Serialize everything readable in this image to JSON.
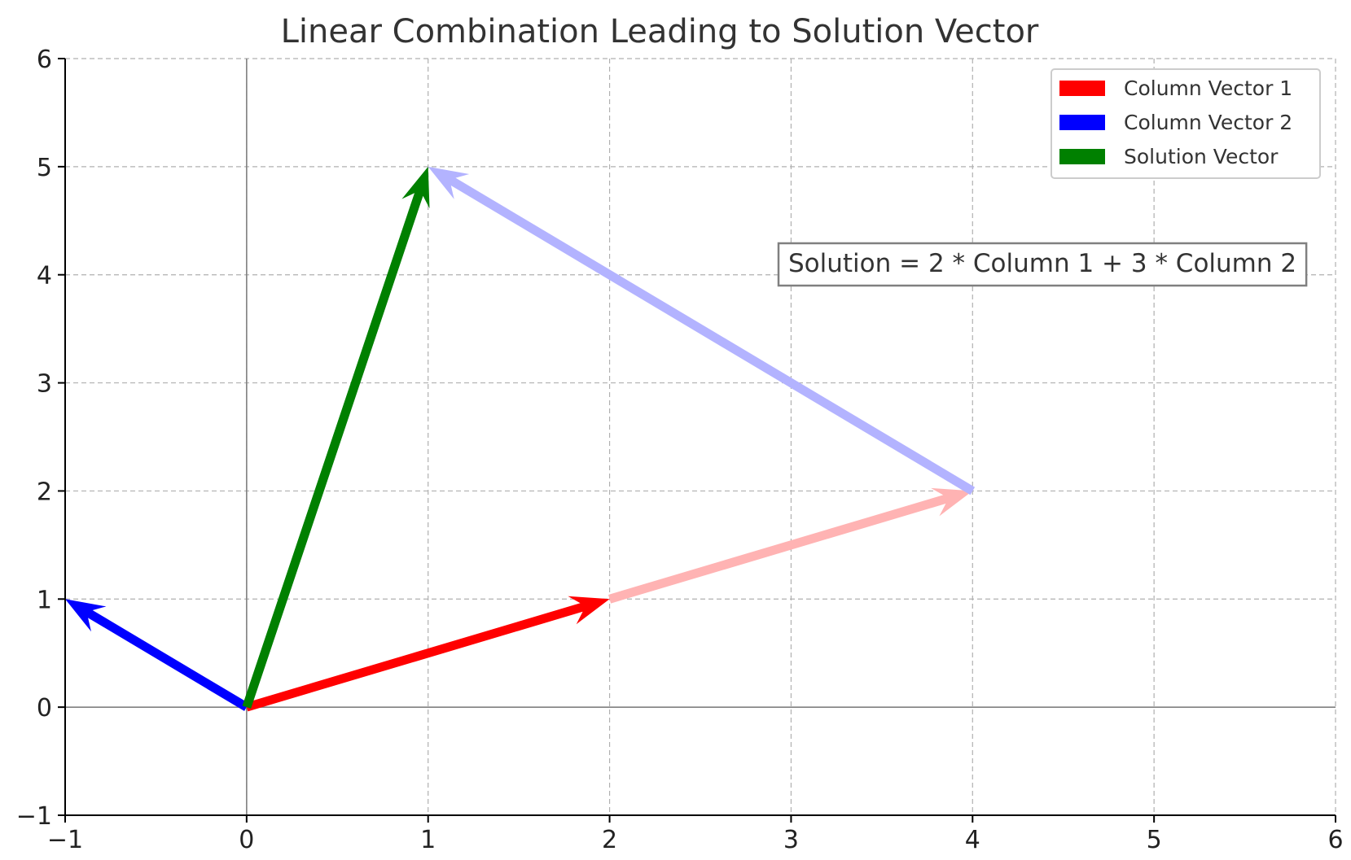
{
  "chart_data": {
    "type": "quiver",
    "title": "Linear Combination Leading to Solution Vector",
    "xlabel": "",
    "ylabel": "",
    "xlim": [
      -1,
      6
    ],
    "ylim": [
      -1,
      6
    ],
    "xticks": [
      "−1",
      "0",
      "1",
      "2",
      "3",
      "4",
      "5",
      "6"
    ],
    "yticks": [
      "−1",
      "0",
      "1",
      "2",
      "3",
      "4",
      "5",
      "6"
    ],
    "grid": true,
    "legend_position": "top-right",
    "series": [
      {
        "name": "Column Vector 1",
        "color": "#ff0000",
        "start": [
          0,
          0
        ],
        "end": [
          2,
          1
        ]
      },
      {
        "name": "Column Vector 2",
        "color": "#0000ff",
        "start": [
          0,
          0
        ],
        "end": [
          -1,
          1
        ]
      },
      {
        "name": "Solution Vector",
        "color": "#008000",
        "start": [
          0,
          0
        ],
        "end": [
          1,
          5
        ]
      }
    ],
    "scaled_vectors": [
      {
        "color": "#ffb3b3",
        "start": [
          2,
          1
        ],
        "end": [
          4,
          2
        ]
      },
      {
        "color": "#b3b3ff",
        "start": [
          4,
          2
        ],
        "end": [
          1,
          5
        ]
      }
    ],
    "annotation": {
      "text": "Solution = 2 * Column 1 + 3 * Column 2"
    }
  }
}
